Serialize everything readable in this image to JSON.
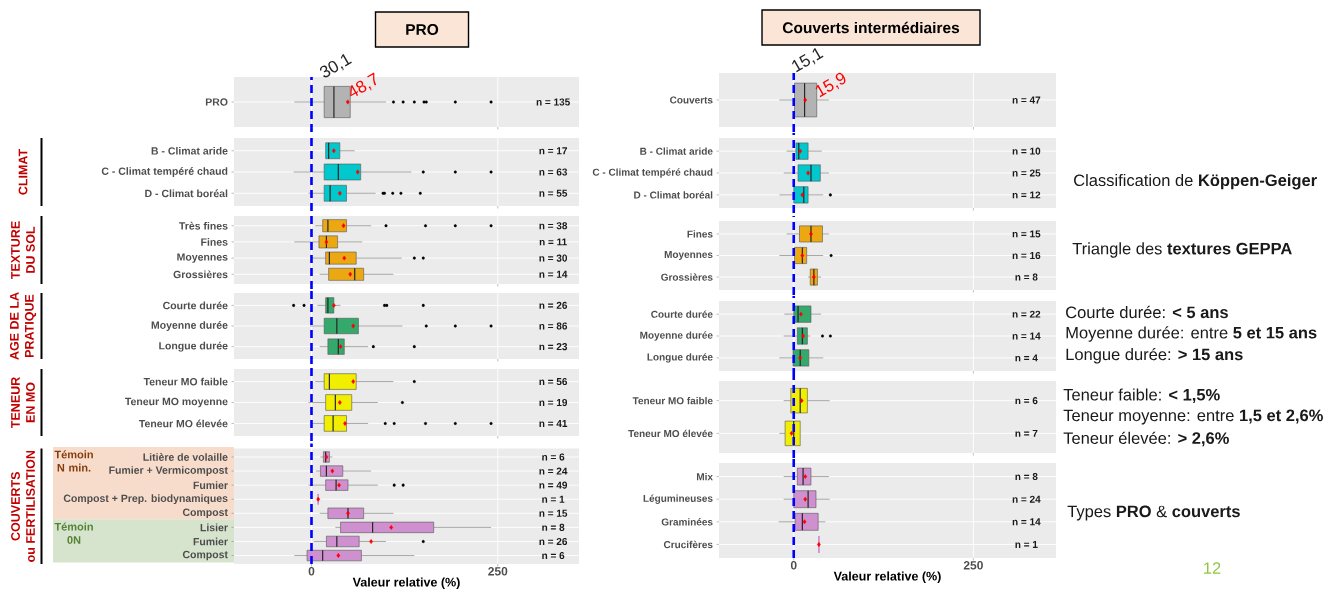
{
  "chart_data": [
    {
      "type": "box",
      "orientation": "horizontal",
      "title": "PRO",
      "categories": [
        "PRO"
      ],
      "color": "#b3b3b3",
      "xlim": [
        -104,
        359
      ],
      "xticks": [
        0,
        250
      ],
      "tick_labels": "y",
      "grid": true,
      "ref_lines": [
        {
          "axis": "x",
          "value": 0,
          "color": "#0000ff",
          "line_style": "dashed"
        }
      ],
      "boxes": [
        {
          "low": -23,
          "q1": 17,
          "median": 30.1,
          "q3": 52,
          "high": 100,
          "mean": 48.7,
          "outliers": [
            110,
            123,
            138,
            151,
            154,
            193,
            241
          ]
        }
      ],
      "value_labels": [
        "n = 135"
      ],
      "annotations": [
        {
          "text": "30,1",
          "x": 30.1,
          "y": "PRO"
        },
        {
          "text": "48,7",
          "x": 48.7,
          "y": "PRO"
        }
      ]
    },
    {
      "type": "box",
      "orientation": "horizontal",
      "ylabel": "CLIMAT",
      "categories": [
        "B - Climat aride",
        "C - Climat tempéré chaud",
        "D - Climat boréal"
      ],
      "color": "#00c8cc",
      "xlim": [
        -104,
        359
      ],
      "xticks": [
        0,
        250
      ],
      "tick_labels": "y",
      "grid": true,
      "ref_lines": [
        {
          "axis": "x",
          "value": 0,
          "color": "#0000ff",
          "line_style": "dashed"
        }
      ],
      "boxes": [
        {
          "low": 19,
          "q1": 19,
          "median": 23,
          "q3": 38,
          "high": 58,
          "mean": 30
        },
        {
          "low": -24,
          "q1": 17,
          "median": 36,
          "q3": 66,
          "high": 134,
          "mean": 62,
          "outliers": [
            150,
            193,
            241
          ]
        },
        {
          "low": -4,
          "q1": 17,
          "median": 25,
          "q3": 47,
          "high": 86,
          "mean": 38,
          "outliers": [
            96,
            98,
            109,
            120,
            146
          ]
        }
      ],
      "value_labels": [
        "n = 17",
        "n = 63",
        "n = 55"
      ]
    },
    {
      "type": "box",
      "orientation": "horizontal",
      "ylabel": "TEXTURE DU SOL",
      "categories": [
        "Très fines",
        "Fines",
        "Moyennes",
        "Grossières"
      ],
      "color": "#eba812",
      "xlim": [
        -104,
        359
      ],
      "xticks": [
        0,
        250
      ],
      "tick_labels": "y",
      "grid": true,
      "ref_lines": [
        {
          "axis": "x",
          "value": 0,
          "color": "#0000ff",
          "line_style": "dashed"
        }
      ],
      "boxes": [
        {
          "low": 5,
          "q1": 15,
          "median": 22,
          "q3": 47,
          "high": 80,
          "mean": 43,
          "outliers": [
            100,
            153,
            193,
            241
          ]
        },
        {
          "low": -23,
          "q1": 10,
          "median": 20,
          "q3": 35,
          "high": 68,
          "mean": 20
        },
        {
          "low": 1,
          "q1": 19,
          "median": 24,
          "q3": 60,
          "high": 121,
          "mean": 44,
          "outliers": [
            138,
            150
          ]
        },
        {
          "low": 11,
          "q1": 23,
          "median": 58,
          "q3": 70,
          "high": 110,
          "mean": 52
        }
      ],
      "value_labels": [
        "n = 38",
        "n = 11",
        "n = 30",
        "n = 14"
      ]
    },
    {
      "type": "box",
      "orientation": "horizontal",
      "ylabel": "AGE DE LA PRATIQUE",
      "categories": [
        "Courte durée",
        "Moyenne durée",
        "Longue durée"
      ],
      "color": "#35a86c",
      "xlim": [
        -104,
        359
      ],
      "xticks": [
        0,
        250
      ],
      "tick_labels": "y",
      "grid": true,
      "ref_lines": [
        {
          "axis": "x",
          "value": 0,
          "color": "#0000ff",
          "line_style": "dashed"
        }
      ],
      "boxes": [
        {
          "low": 8,
          "q1": 19,
          "median": 22,
          "q3": 30,
          "high": 39,
          "mean": 30,
          "outliers": [
            -24,
            -10,
            98,
            101,
            150
          ]
        },
        {
          "low": -2,
          "q1": 17,
          "median": 34,
          "q3": 63,
          "high": 122,
          "mean": 56,
          "outliers": [
            154,
            193,
            241
          ]
        },
        {
          "low": 11,
          "q1": 22,
          "median": 36,
          "q3": 44,
          "high": 76,
          "mean": 39,
          "outliers": [
            83,
            138
          ]
        }
      ],
      "value_labels": [
        "n = 26",
        "n = 86",
        "n = 23"
      ]
    },
    {
      "type": "box",
      "orientation": "horizontal",
      "ylabel": "TENEUR EN MO",
      "categories": [
        "Teneur MO faible",
        "Teneur MO moyenne",
        "Teneur MO élevée"
      ],
      "color": "#f2ee00",
      "xlim": [
        -104,
        359
      ],
      "xticks": [
        0,
        250
      ],
      "tick_labels": "y",
      "grid": true,
      "ref_lines": [
        {
          "axis": "x",
          "value": 0,
          "color": "#0000ff",
          "line_style": "dashed"
        }
      ],
      "boxes": [
        {
          "low": 5,
          "q1": 17,
          "median": 24,
          "q3": 60,
          "high": 110,
          "mean": 56,
          "outliers": [
            138
          ]
        },
        {
          "low": -4,
          "q1": 19,
          "median": 32,
          "q3": 54,
          "high": 89,
          "mean": 38,
          "outliers": [
            122
          ]
        },
        {
          "low": 1,
          "q1": 17,
          "median": 29,
          "q3": 47,
          "high": 76,
          "mean": 45,
          "outliers": [
            99,
            111,
            153,
            193,
            241
          ]
        }
      ],
      "value_labels": [
        "n = 56",
        "n = 19",
        "n = 41"
      ]
    },
    {
      "type": "box",
      "orientation": "horizontal",
      "ylabel": "COUVERTS ou FERTILISATION",
      "xlabel": "Valeur relative (%)",
      "categories": [
        "Litière de volaille",
        "Fumier + Vermicompost",
        "Fumier",
        "Compost + Prep. biodynamiques",
        "Compost",
        "Lisier",
        "Fumier",
        "Compost"
      ],
      "color": "#cf90cf",
      "xlim": [
        -104,
        359
      ],
      "xticks": [
        0,
        250
      ],
      "grid": true,
      "ref_lines": [
        {
          "axis": "x",
          "value": 0,
          "color": "#0000ff",
          "line_style": "dashed"
        }
      ],
      "annotations": [
        "Témoin N min.",
        "Témoin 0N"
      ],
      "boxes": [
        {
          "low": 12,
          "q1": 16,
          "median": 19,
          "q3": 24,
          "high": 28,
          "mean": 20
        },
        {
          "low": 6,
          "q1": 12,
          "median": 20,
          "q3": 42,
          "high": 80,
          "mean": 28
        },
        {
          "low": -4,
          "q1": 19,
          "median": 33,
          "q3": 49,
          "high": 89,
          "mean": 37,
          "outliers": [
            111,
            123
          ]
        },
        {
          "low": 9,
          "q1": 9,
          "median": 9,
          "q3": 9,
          "high": 9,
          "mean": 9
        },
        {
          "low": 11,
          "q1": 22,
          "median": 49,
          "q3": 70,
          "high": 110,
          "mean": 49
        },
        {
          "low": 32,
          "q1": 39,
          "median": 82,
          "q3": 164,
          "high": 241,
          "mean": 107
        },
        {
          "low": 3,
          "q1": 20,
          "median": 34,
          "q3": 64,
          "high": 100,
          "mean": 80,
          "outliers": [
            150
          ]
        },
        {
          "low": -23,
          "q1": -6,
          "median": 15,
          "q3": 67,
          "high": 138,
          "mean": 36
        }
      ],
      "value_labels": [
        "n = 6",
        "n = 24",
        "n = 49",
        "n = 1",
        "n = 15",
        "n = 8",
        "n = 26",
        "n = 6"
      ]
    },
    {
      "type": "box",
      "orientation": "horizontal",
      "title": "Couverts intermédiaires",
      "categories": [
        "Couverts"
      ],
      "color": "#b3b3b3",
      "xlim": [
        -104,
        365
      ],
      "xticks": [
        0,
        250
      ],
      "tick_labels": "y",
      "grid": true,
      "ref_lines": [
        {
          "axis": "x",
          "value": 0,
          "color": "#0000ff",
          "line_style": "dashed"
        }
      ],
      "boxes": [
        {
          "low": -20,
          "q1": 1,
          "median": 15.1,
          "q3": 32,
          "high": 49,
          "mean": 15.9
        }
      ],
      "value_labels": [
        "n = 47"
      ],
      "annotations": [
        {
          "text": "15,1",
          "x": 15.1,
          "y": "Couverts"
        },
        {
          "text": "15,9",
          "x": 15.9,
          "y": "Couverts"
        }
      ]
    },
    {
      "type": "box",
      "orientation": "horizontal",
      "categories": [
        "B - Climat aride",
        "C - Climat tempéré chaud",
        "D - Climat boréal"
      ],
      "color": "#00c8cc",
      "xlim": [
        -104,
        365
      ],
      "xticks": [
        0,
        250
      ],
      "tick_labels": "y",
      "grid": true,
      "ref_lines": [
        {
          "axis": "x",
          "value": 0,
          "color": "#0000ff",
          "line_style": "dashed"
        }
      ],
      "boxes": [
        {
          "low": -10,
          "q1": 3,
          "median": 7,
          "q3": 20,
          "high": 39,
          "mean": 9
        },
        {
          "low": -14,
          "q1": 6,
          "median": 24,
          "q3": 37,
          "high": 49,
          "mean": 20
        },
        {
          "low": -20,
          "q1": 0,
          "median": 14,
          "q3": 20,
          "high": 41,
          "mean": 12,
          "outliers": [
            51
          ]
        }
      ],
      "value_labels": [
        "n = 10",
        "n = 25",
        "n = 12"
      ]
    },
    {
      "type": "box",
      "orientation": "horizontal",
      "categories": [
        "Fines",
        "Moyennes",
        "Grossières"
      ],
      "color": "#eba812",
      "xlim": [
        -104,
        365
      ],
      "xticks": [
        0,
        250
      ],
      "tick_labels": "y",
      "grid": true,
      "ref_lines": [
        {
          "axis": "x",
          "value": 0,
          "color": "#0000ff",
          "line_style": "dashed"
        }
      ],
      "boxes": [
        {
          "low": -10,
          "q1": 8,
          "median": 24,
          "q3": 40,
          "high": 49,
          "mean": 24
        },
        {
          "low": -20,
          "q1": 1,
          "median": 12,
          "q3": 18,
          "high": 41,
          "mean": 12,
          "outliers": [
            52
          ]
        },
        {
          "low": 20,
          "q1": 23,
          "median": 28,
          "q3": 33,
          "high": 38,
          "mean": 28
        }
      ],
      "value_labels": [
        "n = 15",
        "n = 16",
        "n = 8"
      ]
    },
    {
      "type": "box",
      "orientation": "horizontal",
      "categories": [
        "Courte durée",
        "Moyenne durée",
        "Longue durée"
      ],
      "color": "#35a86c",
      "xlim": [
        -104,
        365
      ],
      "xticks": [
        0,
        250
      ],
      "tick_labels": "y",
      "grid": true,
      "ref_lines": [
        {
          "axis": "x",
          "value": 0,
          "color": "#0000ff",
          "line_style": "dashed"
        }
      ],
      "boxes": [
        {
          "low": -13,
          "q1": 0,
          "median": 6,
          "q3": 24,
          "high": 38,
          "mean": 10
        },
        {
          "low": -14,
          "q1": 5,
          "median": 12,
          "q3": 19,
          "high": 23,
          "mean": 13,
          "outliers": [
            40,
            51
          ]
        },
        {
          "low": -20,
          "q1": -1,
          "median": 9,
          "q3": 21,
          "high": 41,
          "mean": 9
        }
      ],
      "value_labels": [
        "n = 22",
        "n = 14",
        "n = 4"
      ]
    },
    {
      "type": "box",
      "orientation": "horizontal",
      "categories": [
        "Teneur MO faible",
        "Teneur MO élevée"
      ],
      "color": "#f2ee00",
      "xlim": [
        -104,
        365
      ],
      "xticks": [
        0,
        250
      ],
      "tick_labels": "y",
      "grid": true,
      "ref_lines": [
        {
          "axis": "x",
          "value": 0,
          "color": "#0000ff",
          "line_style": "dashed"
        }
      ],
      "boxes": [
        {
          "low": -14,
          "q1": -4,
          "median": 9,
          "q3": 19,
          "high": 50,
          "mean": 11
        },
        {
          "low": -20,
          "q1": -12,
          "median": 0,
          "q3": 9,
          "high": 9,
          "mean": -3
        }
      ],
      "value_labels": [
        "n = 6",
        "n = 7"
      ]
    },
    {
      "type": "box",
      "orientation": "horizontal",
      "xlabel": "Valeur relative (%)",
      "categories": [
        "Mix",
        "Légumineuses",
        "Graminées",
        "Crucifères"
      ],
      "color": "#cf90cf",
      "xlim": [
        -104,
        365
      ],
      "xticks": [
        0,
        250
      ],
      "grid": true,
      "ref_lines": [
        {
          "axis": "x",
          "value": 0,
          "color": "#0000ff",
          "line_style": "dashed"
        }
      ],
      "boxes": [
        {
          "low": -14,
          "q1": 5,
          "median": 13,
          "q3": 24,
          "high": 49,
          "mean": 16
        },
        {
          "low": -14,
          "q1": 0,
          "median": 20,
          "q3": 31,
          "high": 50,
          "mean": 16
        },
        {
          "low": -21,
          "q1": 2,
          "median": 12,
          "q3": 34,
          "high": 44,
          "mean": 15
        },
        {
          "low": 35,
          "q1": 35,
          "median": 35,
          "q3": 35,
          "high": 35,
          "mean": 35
        }
      ],
      "value_labels": [
        "n = 8",
        "n = 24",
        "n = 14",
        "n = 1"
      ]
    },
    {
      "type": "other",
      "annotations": [
        "Classification de **Köppen-Geiger**",
        "Triangle des **textures GEPPA**",
        "Courte durée: **< 5 ans**",
        "Moyenne durée: entre **5 et 15 ans**",
        "Longue durée: **> 15 ans**",
        "Teneur faible: **< 1,5%**",
        "Teneur moyenne: entre **1,5 et 2,6%**",
        "Teneur élevée: **> 2,6%**",
        "Types **PRO** & **couverts**",
        "12"
      ]
    }
  ]
}
